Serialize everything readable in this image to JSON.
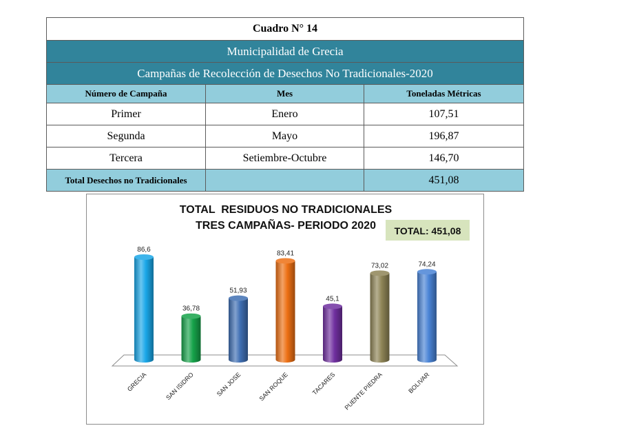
{
  "table": {
    "title": "Cuadro N° 14",
    "subtitle_1": "Municipalidad de Grecia",
    "subtitle_2": "Campañas de Recolección de Desechos No Tradicionales-2020",
    "headers": [
      "Número de Campaña",
      "Mes",
      "Toneladas Métricas"
    ],
    "rows": [
      {
        "campaign": "Primer",
        "month": "Enero",
        "tons": "107,51"
      },
      {
        "campaign": "Segunda",
        "month": "Mayo",
        "tons": "196,87"
      },
      {
        "campaign": "Tercera",
        "month": "Setiembre-Octubre",
        "tons": "146,70"
      }
    ],
    "total": {
      "label": "Total Desechos no Tradicionales",
      "month": "",
      "tons": "451,08"
    }
  },
  "chart": {
    "total_badge": "TOTAL: 451,08",
    "badge_color": "#d7e4bd"
  },
  "chart_data": {
    "type": "bar",
    "title": "TOTAL  RESIDUOS NO TRADICIONALES",
    "subtitle": "TRES CAMPAÑAS- PERIODO 2020",
    "categories": [
      "GRECIA",
      "SAN ISIDRO",
      "SAN JOSE",
      "SAN ROQUE",
      "TACARES",
      "PUENTE PIEDRA",
      "BOLIVAR"
    ],
    "values": [
      86.6,
      36.78,
      51.93,
      83.41,
      45.1,
      73.02,
      74.24
    ],
    "value_labels": [
      "86,6",
      "36,78",
      "51,93",
      "83,41",
      "45,1",
      "73,02",
      "74,24"
    ],
    "colors": [
      "#1aa7e8",
      "#16a34a",
      "#3f6fb3",
      "#ed7014",
      "#7030a0",
      "#8e8456",
      "#4a84d6"
    ],
    "xlabel": "",
    "ylabel": "",
    "ylim": [
      0,
      90
    ],
    "grid": false,
    "legend": "none"
  }
}
